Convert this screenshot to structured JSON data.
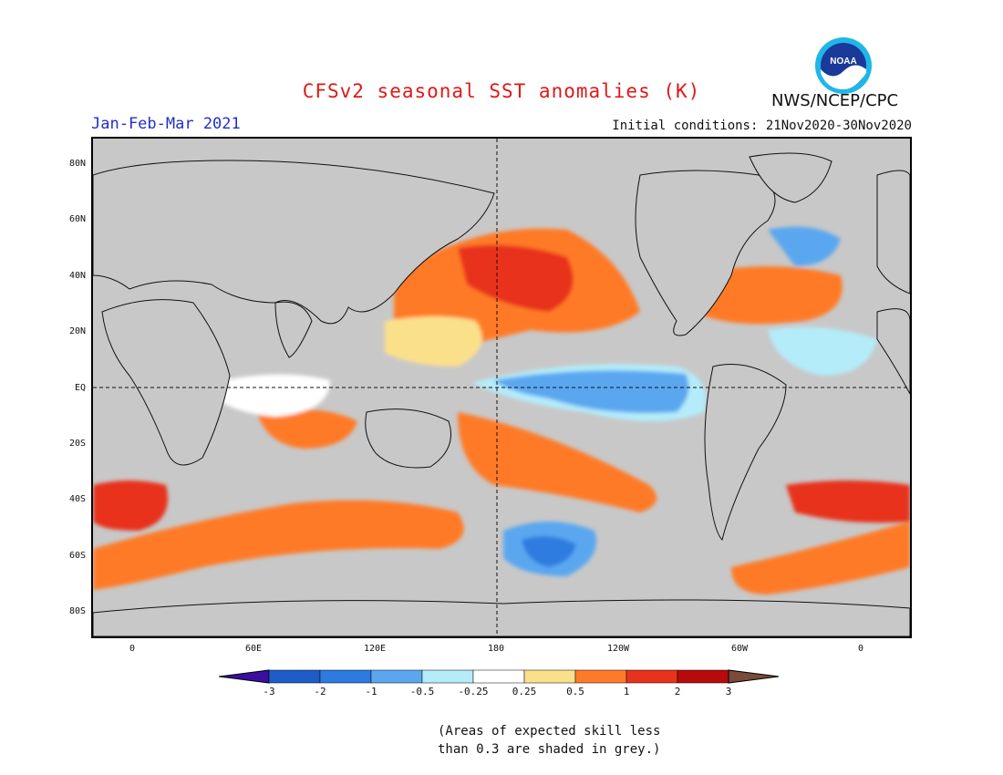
{
  "title": "CFSv2 seasonal SST anomalies (K)",
  "organization": "NWS/NCEP/CPC",
  "logo_text": "NOAA",
  "season": "Jan-Feb-Mar 2021",
  "initial_conditions": "Initial conditions: 21Nov2020-30Nov2020",
  "lat_labels": [
    "80N",
    "60N",
    "40N",
    "20N",
    "EQ",
    "20S",
    "40S",
    "60S",
    "80S"
  ],
  "lon_labels": [
    "0",
    "60E",
    "120E",
    "180",
    "120W",
    "60W",
    "0"
  ],
  "colorbar": {
    "labels": [
      "-3",
      "-2",
      "-1",
      "-0.5",
      "-0.25",
      "0.25",
      "0.5",
      "1",
      "2",
      "3"
    ],
    "colors": [
      "#3a0fa0",
      "#1e5cc8",
      "#2d7be0",
      "#5aa7f0",
      "#b4ecfa",
      "#ffffff",
      "#fbe08c",
      "#ff7a28",
      "#e8321a",
      "#b80a0a",
      "#7a4a3a"
    ]
  },
  "note_line1": "(Areas of expected skill less",
  "note_line2": "than 0.3 are shaded in grey.)"
}
